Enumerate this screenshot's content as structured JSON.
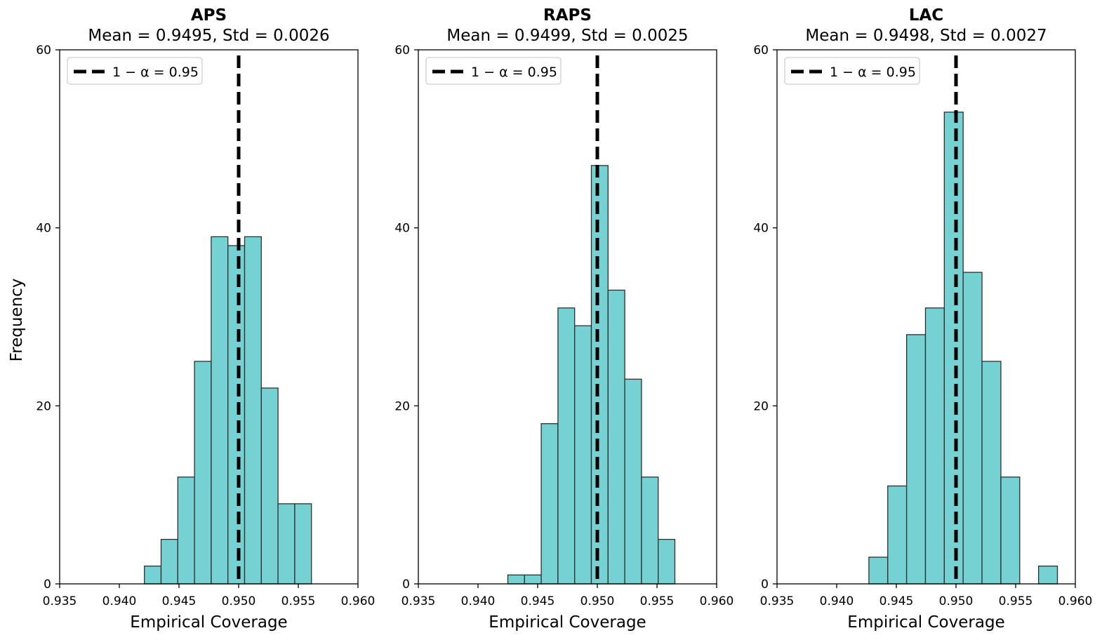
{
  "figure": {
    "ylabel": "Frequency",
    "legend_label": "1 − α = 0.95",
    "bar_color": "#76d1d2",
    "bar_edge_color": "#2f2f2f"
  },
  "chart_data": [
    {
      "type": "bar",
      "title": "APS",
      "subtitle": "Mean = 0.9495, Std = 0.0026",
      "xlabel": "Empirical Coverage",
      "ylabel": "Frequency",
      "xlim": [
        0.935,
        0.96
      ],
      "ylim": [
        0,
        60
      ],
      "xticks": [
        0.935,
        0.94,
        0.945,
        0.95,
        0.955,
        0.96
      ],
      "xtick_labels": [
        "0.935",
        "0.940",
        "0.945",
        "0.950",
        "0.955",
        "0.960"
      ],
      "yticks": [
        0,
        20,
        40,
        60
      ],
      "ytick_labels": [
        "0",
        "20",
        "40",
        "60"
      ],
      "bin_start": 0.9421,
      "bin_width": 0.0014,
      "values": [
        2,
        5,
        12,
        25,
        39,
        38,
        39,
        22,
        9,
        9
      ],
      "reference_line": 0.95,
      "legend_position": "upper-left"
    },
    {
      "type": "bar",
      "title": "RAPS",
      "subtitle": "Mean = 0.9499, Std = 0.0025",
      "xlabel": "Empirical Coverage",
      "ylabel": "",
      "xlim": [
        0.935,
        0.96
      ],
      "ylim": [
        0,
        60
      ],
      "xticks": [
        0.935,
        0.94,
        0.945,
        0.95,
        0.955,
        0.96
      ],
      "xtick_labels": [
        "0.935",
        "0.940",
        "0.945",
        "0.950",
        "0.955",
        "0.960"
      ],
      "yticks": [
        0,
        20,
        40,
        60
      ],
      "ytick_labels": [
        "0",
        "20",
        "40",
        "60"
      ],
      "bin_start": 0.9425,
      "bin_width": 0.0014,
      "values": [
        1,
        1,
        18,
        31,
        29,
        47,
        33,
        23,
        12,
        5
      ],
      "reference_line": 0.95,
      "legend_position": "upper-left"
    },
    {
      "type": "bar",
      "title": "LAC",
      "subtitle": "Mean = 0.9498, Std = 0.0027",
      "xlabel": "Empirical Coverage",
      "ylabel": "",
      "xlim": [
        0.935,
        0.96
      ],
      "ylim": [
        0,
        60
      ],
      "xticks": [
        0.935,
        0.94,
        0.945,
        0.95,
        0.955,
        0.96
      ],
      "xtick_labels": [
        "0.935",
        "0.940",
        "0.945",
        "0.950",
        "0.955",
        "0.960"
      ],
      "yticks": [
        0,
        20,
        40,
        60
      ],
      "ytick_labels": [
        "0",
        "20",
        "40",
        "60"
      ],
      "bin_start": 0.9427,
      "bin_width": 0.00158,
      "values": [
        3,
        11,
        28,
        31,
        53,
        35,
        25,
        12,
        0,
        2
      ],
      "reference_line": 0.95,
      "legend_position": "upper-left"
    }
  ]
}
